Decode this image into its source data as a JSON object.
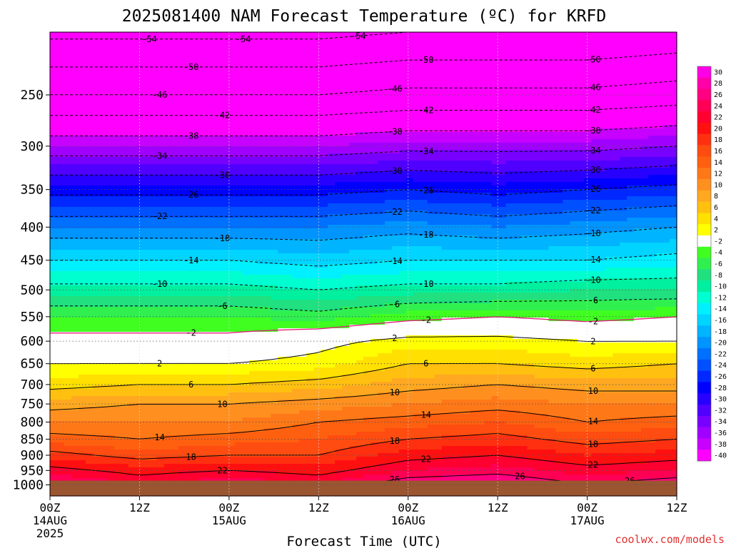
{
  "page": {
    "title": "2025081400 NAM Forecast Temperature (ºC) for KRFD",
    "credit": "coolwx.com/models"
  },
  "chart_data": {
    "type": "heatmap",
    "title": "2025081400 NAM Forecast Temperature (ºC) for KRFD",
    "xlabel": "Forecast Time (UTC)",
    "ylabel": "",
    "x_unit": "hours",
    "xlim": [
      0,
      84
    ],
    "y_axis": {
      "scale": "log",
      "reversed": true,
      "range_hpa": [
        1040,
        200
      ]
    },
    "x_ticks": [
      {
        "hour": 0,
        "label": "00Z",
        "sublabel": "14AUG",
        "sublabel2": "2025"
      },
      {
        "hour": 12,
        "label": "12Z",
        "sublabel": "",
        "sublabel2": ""
      },
      {
        "hour": 24,
        "label": "00Z",
        "sublabel": "15AUG",
        "sublabel2": ""
      },
      {
        "hour": 36,
        "label": "12Z",
        "sublabel": "",
        "sublabel2": ""
      },
      {
        "hour": 48,
        "label": "00Z",
        "sublabel": "16AUG",
        "sublabel2": ""
      },
      {
        "hour": 60,
        "label": "12Z",
        "sublabel": "",
        "sublabel2": ""
      },
      {
        "hour": 72,
        "label": "00Z",
        "sublabel": "17AUG",
        "sublabel2": ""
      },
      {
        "hour": 84,
        "label": "12Z",
        "sublabel": "",
        "sublabel2": ""
      }
    ],
    "y_ticks": [
      {
        "value": 250,
        "label": "250"
      },
      {
        "value": 300,
        "label": "300"
      },
      {
        "value": 350,
        "label": "350"
      },
      {
        "value": 400,
        "label": "400"
      },
      {
        "value": 450,
        "label": "450"
      },
      {
        "value": 500,
        "label": "500"
      },
      {
        "value": 550,
        "label": "550"
      },
      {
        "value": 600,
        "label": "600"
      },
      {
        "value": 650,
        "label": "650"
      },
      {
        "value": 700,
        "label": "700"
      },
      {
        "value": 750,
        "label": "750"
      },
      {
        "value": 800,
        "label": "800"
      },
      {
        "value": 850,
        "label": "850"
      },
      {
        "value": 900,
        "label": "900"
      },
      {
        "value": 950,
        "label": "950"
      },
      {
        "value": 1000,
        "label": "1000"
      }
    ],
    "grid": true,
    "surface_pressure_hpa": 985,
    "surface_color": "#9b5530",
    "time_hours": [
      0,
      12,
      24,
      36,
      48,
      60,
      72,
      84
    ],
    "profile_pressures": [
      1000,
      950,
      900,
      850,
      800,
      750,
      700,
      650,
      600,
      550,
      500,
      450,
      400,
      350,
      300,
      250,
      200
    ],
    "profiles": [
      [
        27,
        23,
        19,
        15,
        12,
        9,
        5,
        2,
        -1,
        -4,
        -9,
        -14,
        -20,
        -27,
        -36,
        -46,
        -55
      ],
      [
        24,
        21,
        17,
        14,
        12,
        10,
        6,
        2,
        -1,
        -4,
        -9,
        -14,
        -20,
        -27,
        -36,
        -46,
        -55
      ],
      [
        26,
        22,
        18,
        15,
        12,
        10,
        6,
        2,
        -1,
        -4,
        -9,
        -14,
        -20,
        -27,
        -36,
        -46,
        -55
      ],
      [
        24,
        21,
        18,
        16,
        14,
        11,
        7,
        3,
        1,
        -5,
        -10,
        -15,
        -20,
        -27,
        -36,
        -46,
        -55
      ],
      [
        28,
        24,
        21,
        18,
        15,
        12,
        9,
        6,
        3,
        -3,
        -9,
        -14,
        -19,
        -26,
        -35,
        -45,
        -54
      ],
      [
        29,
        25,
        22,
        19,
        16,
        13,
        10,
        6,
        3,
        -2,
        -9,
        -14,
        -20,
        -27,
        -35,
        -45,
        -54
      ],
      [
        26,
        23,
        20,
        17,
        14,
        12,
        9,
        5,
        2,
        -3,
        -8,
        -14,
        -19,
        -26,
        -35,
        -45,
        -54
      ],
      [
        28,
        24,
        21,
        18,
        15,
        12,
        9,
        6,
        2,
        -2,
        -8,
        -13,
        -18,
        -25,
        -34,
        -44,
        -53
      ]
    ],
    "contour_levels_solid": [
      2,
      6,
      10,
      14,
      18,
      22,
      26
    ],
    "contour_levels_dashed": [
      -2,
      -6,
      -10,
      -14,
      -18,
      -22,
      -26,
      -30,
      -34,
      -38,
      -42,
      -46,
      -50,
      -54
    ],
    "freezing_line_color": "#e0207a",
    "colorbar": {
      "labels": [
        "30",
        "28",
        "26",
        "24",
        "22",
        "20",
        "18",
        "16",
        "14",
        "12",
        "10",
        "8",
        "6",
        "4",
        "2",
        "-2",
        "-4",
        "-6",
        "-8",
        "-10",
        "-12",
        "-14",
        "-16",
        "-18",
        "-20",
        "-22",
        "-24",
        "-26",
        "-28",
        "-30",
        "-32",
        "-34",
        "-36",
        "-38",
        "-40"
      ],
      "colors": [
        "#ff00e6",
        "#ff00aa",
        "#ff0080",
        "#ff0055",
        "#ff0030",
        "#ff1010",
        "#ff3010",
        "#ff4c10",
        "#ff6010",
        "#ff7818",
        "#ff9020",
        "#ffa820",
        "#ffc010",
        "#ffe000",
        "#ffff00",
        "#ffffff",
        "#40ff20",
        "#30f050",
        "#20e080",
        "#00f0a0",
        "#00ffd0",
        "#00f0ff",
        "#00d4ff",
        "#00b4ff",
        "#0094ff",
        "#0070ff",
        "#0050ff",
        "#0028ff",
        "#0000ff",
        "#2800ff",
        "#5000ff",
        "#7800ff",
        "#a000ff",
        "#c800ff",
        "#ff00ff"
      ]
    }
  }
}
